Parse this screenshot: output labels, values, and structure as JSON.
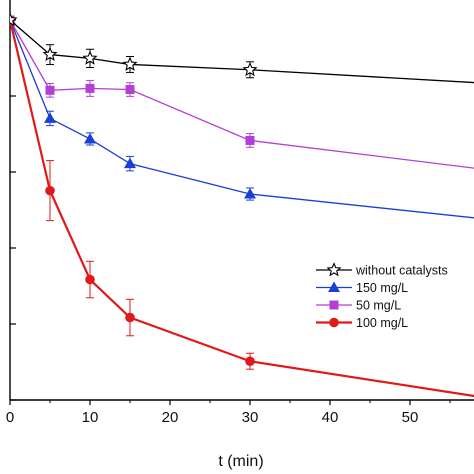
{
  "chart_data": {
    "type": "line",
    "title": "",
    "xlabel": "t (min)",
    "ylabel": "",
    "xlim": [
      0,
      58
    ],
    "ylim": [
      0,
      1
    ],
    "x_ticks": [
      0,
      10,
      20,
      30,
      40,
      50
    ],
    "y_ticks": [
      0,
      0.2,
      0.4,
      0.6,
      0.8,
      1.0
    ],
    "grid": false,
    "legend_position": "right",
    "series": [
      {
        "name": "without catalysts",
        "color": "#000000",
        "marker": "star-open",
        "x": [
          0,
          5,
          10,
          15,
          30,
          60
        ],
        "y": [
          1.0,
          0.909,
          0.899,
          0.883,
          0.869,
          0.833
        ],
        "err": [
          0,
          0.026,
          0.024,
          0.021,
          0.021,
          0
        ]
      },
      {
        "name": "150 mg/L",
        "color": "#1a3fd6",
        "marker": "triangle",
        "x": [
          0,
          5,
          10,
          15,
          30,
          60
        ],
        "y": [
          1.0,
          0.741,
          0.687,
          0.622,
          0.542,
          0.475
        ],
        "err": [
          0,
          0.019,
          0.016,
          0.019,
          0.016,
          0
        ]
      },
      {
        "name": "50 mg/L",
        "color": "#b43fd6",
        "marker": "square",
        "x": [
          0,
          5,
          10,
          15,
          30,
          60
        ],
        "y": [
          1.0,
          0.815,
          0.82,
          0.817,
          0.683,
          0.605
        ],
        "err": [
          0,
          0.018,
          0.021,
          0.018,
          0.018,
          0
        ]
      },
      {
        "name": "100 mg/L",
        "color": "#e01a1a",
        "marker": "circle",
        "x": [
          0,
          5,
          10,
          15,
          30,
          60
        ],
        "y": [
          1.0,
          0.551,
          0.317,
          0.217,
          0.102,
          0.004
        ],
        "err": [
          0,
          0.079,
          0.048,
          0.048,
          0.021,
          0
        ]
      }
    ]
  }
}
